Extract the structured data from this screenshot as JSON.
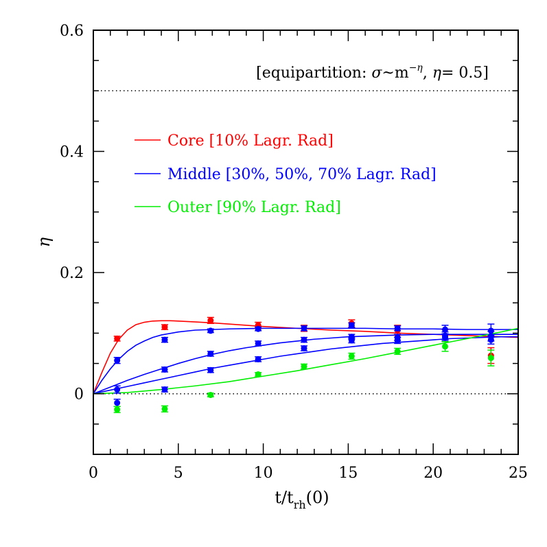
{
  "chart_data": {
    "type": "line",
    "xlabel": "t/t",
    "xlabel_sub": "rh",
    "xlabel_suffix": "(0)",
    "ylabel": "η",
    "xlim": [
      0,
      25
    ],
    "ylim": [
      -0.1,
      0.6
    ],
    "x_ticks": [
      0,
      5,
      10,
      15,
      20,
      25
    ],
    "x_tick_labels": [
      "0",
      "5",
      "10",
      "15",
      "20",
      "25"
    ],
    "y_ticks": [
      0,
      0.2,
      0.4,
      0.6
    ],
    "y_tick_labels": [
      "0",
      "0.2",
      "0.4",
      "0.6"
    ],
    "reference_lines": [
      {
        "y": 0.5,
        "style": "dotted"
      },
      {
        "y": 0.0,
        "style": "dotted"
      }
    ],
    "annotation": {
      "text_before": "[equipartition: ",
      "sigma": "σ",
      "tilde_m": "~m",
      "exponent": "−η",
      "text_middle": ", ",
      "eta": "η",
      "text_after": "= 0.5]"
    },
    "legend": {
      "position": "upper-left",
      "entries": [
        {
          "label": "Core [10% Lagr. Rad]",
          "color": "#ff0000"
        },
        {
          "label": "Middle [30%, 50%, 70% Lagr. Rad]",
          "color": "#0000ff"
        },
        {
          "label": "Outer [90% Lagr. Rad]",
          "color": "#00ee00"
        }
      ]
    },
    "series": [
      {
        "name": "Core [10% Lagr. Rad]",
        "color": "#ff0000",
        "curve_x": [
          0,
          0.5,
          1,
          1.5,
          2,
          2.5,
          3,
          3.5,
          4,
          4.5,
          5,
          6,
          7,
          8,
          9,
          10,
          12,
          14,
          16,
          18,
          20,
          22,
          24,
          25
        ],
        "curve_y": [
          0,
          0.035,
          0.067,
          0.09,
          0.105,
          0.114,
          0.118,
          0.12,
          0.1205,
          0.1205,
          0.12,
          0.1185,
          0.117,
          0.115,
          0.113,
          0.111,
          0.108,
          0.105,
          0.103,
          0.1,
          0.098,
          0.096,
          0.094,
          0.093
        ],
        "points_x": [
          1.4,
          4.2,
          6.9,
          9.7,
          12.4,
          15.2,
          17.9,
          20.7,
          23.4
        ],
        "points_y": [
          0.091,
          0.11,
          0.121,
          0.113,
          0.108,
          0.116,
          0.105,
          0.096,
          0.063
        ],
        "errors": [
          0.004,
          0.004,
          0.005,
          0.005,
          0.005,
          0.006,
          0.008,
          0.01,
          0.013
        ]
      },
      {
        "name": "Middle 30%",
        "color": "#0000ff",
        "curve_x": [
          0,
          0.5,
          1,
          1.5,
          2,
          2.5,
          3,
          3.5,
          4,
          5,
          6,
          7,
          8,
          9,
          10,
          12,
          14,
          16,
          18,
          20,
          22,
          24,
          25
        ],
        "curve_y": [
          0,
          0.022,
          0.041,
          0.057,
          0.07,
          0.08,
          0.087,
          0.093,
          0.097,
          0.102,
          0.105,
          0.106,
          0.107,
          0.1075,
          0.108,
          0.108,
          0.108,
          0.108,
          0.107,
          0.107,
          0.106,
          0.106,
          0.106
        ],
        "points_x": [
          1.4,
          4.2,
          6.9,
          9.7,
          12.4,
          15.2,
          17.9,
          20.7,
          23.4
        ],
        "points_y": [
          0.055,
          0.089,
          0.104,
          0.107,
          0.108,
          0.113,
          0.108,
          0.106,
          0.104
        ],
        "errors": [
          0.005,
          0.004,
          0.003,
          0.003,
          0.004,
          0.004,
          0.004,
          0.007,
          0.011
        ]
      },
      {
        "name": "Middle 50%",
        "color": "#0000ff",
        "curve_x": [
          0,
          1,
          2,
          3,
          4,
          5,
          6,
          7,
          8,
          9,
          10,
          11,
          12,
          13,
          14,
          15,
          16,
          17,
          18,
          20,
          22,
          24,
          25
        ],
        "curve_y": [
          0,
          0.011,
          0.022,
          0.032,
          0.041,
          0.05,
          0.058,
          0.065,
          0.071,
          0.076,
          0.08,
          0.084,
          0.087,
          0.09,
          0.092,
          0.094,
          0.095,
          0.096,
          0.097,
          0.098,
          0.098,
          0.098,
          0.098
        ],
        "points_x": [
          1.4,
          4.2,
          6.9,
          9.7,
          12.4,
          15.2,
          17.9,
          20.7,
          23.4
        ],
        "points_y": [
          0.007,
          0.04,
          0.066,
          0.083,
          0.089,
          0.094,
          0.093,
          0.096,
          0.095
        ],
        "errors": [
          0.006,
          0.004,
          0.004,
          0.004,
          0.004,
          0.004,
          0.005,
          0.006,
          0.008
        ]
      },
      {
        "name": "Middle 70%",
        "color": "#0000ff",
        "curve_x": [
          0,
          1,
          2,
          3,
          4,
          5,
          6,
          7,
          8,
          9,
          10,
          11,
          12,
          13,
          14,
          15,
          16,
          17,
          18,
          19,
          20,
          21,
          22,
          23,
          24,
          25
        ],
        "curve_y": [
          0,
          0.006,
          0.012,
          0.018,
          0.024,
          0.03,
          0.036,
          0.042,
          0.047,
          0.052,
          0.057,
          0.062,
          0.066,
          0.07,
          0.074,
          0.077,
          0.08,
          0.083,
          0.085,
          0.087,
          0.089,
          0.091,
          0.092,
          0.093,
          0.094,
          0.094
        ],
        "points_x": [
          1.4,
          4.2,
          6.9,
          9.7,
          12.4,
          15.2,
          17.9,
          20.7,
          23.4
        ],
        "points_y": [
          -0.015,
          0.007,
          0.039,
          0.057,
          0.075,
          0.088,
          0.088,
          0.093,
          0.089
        ],
        "errors": [
          0.006,
          0.004,
          0.004,
          0.004,
          0.004,
          0.004,
          0.005,
          0.005,
          0.007
        ]
      },
      {
        "name": "Outer [90% Lagr. Rad]",
        "color": "#00ee00",
        "curve_x": [
          0,
          2,
          4,
          6,
          8,
          10,
          12,
          14,
          16,
          18,
          20,
          22,
          24,
          25
        ],
        "curve_y": [
          0,
          0.002,
          0.007,
          0.013,
          0.02,
          0.029,
          0.038,
          0.048,
          0.058,
          0.069,
          0.08,
          0.091,
          0.102,
          0.108
        ],
        "points_x": [
          1.4,
          4.2,
          6.9,
          9.7,
          12.4,
          15.2,
          17.9,
          20.7,
          23.4
        ],
        "points_y": [
          -0.026,
          -0.025,
          -0.002,
          0.032,
          0.045,
          0.062,
          0.07,
          0.078,
          0.059
        ],
        "errors": [
          0.005,
          0.005,
          0.003,
          0.003,
          0.004,
          0.005,
          0.005,
          0.008,
          0.013
        ]
      }
    ]
  }
}
